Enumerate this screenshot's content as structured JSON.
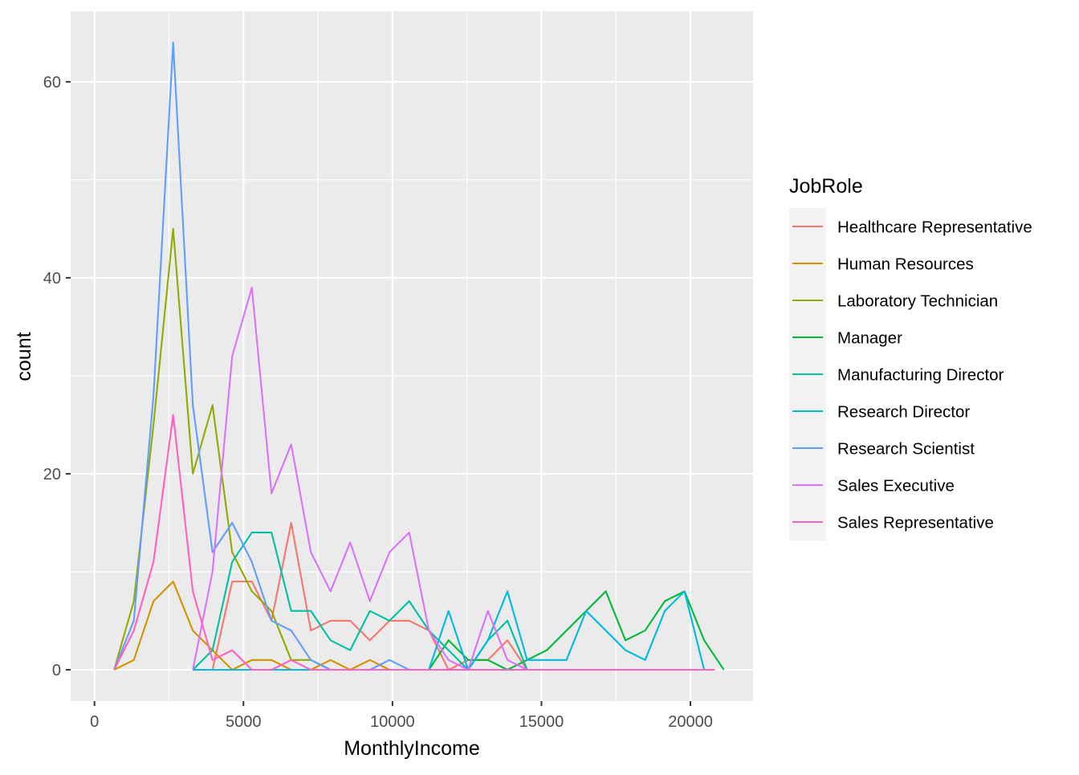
{
  "chart_data": {
    "type": "line",
    "xlabel": "MonthlyIncome",
    "ylabel": "count",
    "xlim": [
      -800,
      22100
    ],
    "ylim": [
      -3.2,
      67.2
    ],
    "x_ticks": [
      0,
      5000,
      10000,
      15000,
      20000
    ],
    "x_tick_labels": [
      "0",
      "5000",
      "10000",
      "15000",
      "20000"
    ],
    "y_ticks": [
      0,
      20,
      40,
      60
    ],
    "y_tick_labels": [
      "0",
      "20",
      "40",
      "60"
    ],
    "grid": true,
    "legend": {
      "title": "JobRole",
      "position": "right"
    },
    "series": [
      {
        "name": "Healthcare Representative",
        "color": "#F8766D",
        "points": [
          [
            3300,
            0
          ],
          [
            3960,
            0
          ],
          [
            4620,
            9
          ],
          [
            5280,
            9
          ],
          [
            5940,
            5
          ],
          [
            6600,
            15
          ],
          [
            7260,
            4
          ],
          [
            7920,
            5
          ],
          [
            8580,
            5
          ],
          [
            9240,
            3
          ],
          [
            9900,
            5
          ],
          [
            10560,
            5
          ],
          [
            11220,
            4
          ],
          [
            11880,
            0
          ],
          [
            12540,
            1
          ],
          [
            13200,
            1
          ],
          [
            13860,
            3
          ],
          [
            14520,
            0
          ],
          [
            15180,
            0
          ],
          [
            20820,
            0
          ]
        ]
      },
      {
        "name": "Human Resources",
        "color": "#D39200",
        "points": [
          [
            660,
            0
          ],
          [
            1320,
            1
          ],
          [
            1980,
            7
          ],
          [
            2640,
            9
          ],
          [
            3300,
            4
          ],
          [
            3960,
            2
          ],
          [
            4620,
            0
          ],
          [
            5280,
            1
          ],
          [
            5940,
            1
          ],
          [
            6600,
            0
          ],
          [
            7260,
            0
          ],
          [
            7920,
            1
          ],
          [
            8580,
            0
          ],
          [
            9240,
            1
          ],
          [
            9900,
            0
          ],
          [
            10560,
            0
          ],
          [
            20820,
            0
          ]
        ]
      },
      {
        "name": "Laboratory Technician",
        "color": "#93AA00",
        "points": [
          [
            660,
            0
          ],
          [
            1320,
            7
          ],
          [
            1980,
            25
          ],
          [
            2640,
            45
          ],
          [
            3300,
            20
          ],
          [
            3960,
            27
          ],
          [
            4620,
            12
          ],
          [
            5280,
            8
          ],
          [
            5940,
            6
          ],
          [
            6600,
            1
          ],
          [
            7260,
            1
          ],
          [
            7920,
            0
          ],
          [
            20820,
            0
          ]
        ]
      },
      {
        "name": "Manager",
        "color": "#00BA38",
        "points": [
          [
            11220,
            0
          ],
          [
            11880,
            3
          ],
          [
            12540,
            1
          ],
          [
            13200,
            1
          ],
          [
            13860,
            0
          ],
          [
            14520,
            1
          ],
          [
            15180,
            2
          ],
          [
            15840,
            4
          ],
          [
            16500,
            6
          ],
          [
            17160,
            8
          ],
          [
            17820,
            3
          ],
          [
            18480,
            4
          ],
          [
            19140,
            7
          ],
          [
            19800,
            8
          ],
          [
            20460,
            3
          ],
          [
            21120,
            0
          ]
        ]
      },
      {
        "name": "Manufacturing Director",
        "color": "#00C19F",
        "points": [
          [
            3300,
            0
          ],
          [
            3960,
            2
          ],
          [
            4620,
            11
          ],
          [
            5280,
            14
          ],
          [
            5940,
            14
          ],
          [
            6600,
            6
          ],
          [
            7260,
            6
          ],
          [
            7920,
            3
          ],
          [
            8580,
            2
          ],
          [
            9240,
            6
          ],
          [
            9900,
            5
          ],
          [
            10560,
            7
          ],
          [
            11220,
            4
          ],
          [
            11880,
            2
          ],
          [
            12540,
            0
          ],
          [
            13200,
            3
          ],
          [
            13860,
            5
          ],
          [
            14520,
            0
          ],
          [
            20820,
            0
          ]
        ]
      },
      {
        "name": "Research Director",
        "color": "#00B9E3",
        "points": [
          [
            3300,
            0
          ],
          [
            11220,
            0
          ],
          [
            11880,
            6
          ],
          [
            12540,
            0
          ],
          [
            13200,
            3
          ],
          [
            13860,
            8
          ],
          [
            14520,
            1
          ],
          [
            15180,
            1
          ],
          [
            15840,
            1
          ],
          [
            16500,
            6
          ],
          [
            17160,
            4
          ],
          [
            17820,
            2
          ],
          [
            18480,
            1
          ],
          [
            19140,
            6
          ],
          [
            19800,
            8
          ],
          [
            20460,
            0
          ]
        ]
      },
      {
        "name": "Research Scientist",
        "color": "#619CFF",
        "points": [
          [
            660,
            0
          ],
          [
            1320,
            5
          ],
          [
            1980,
            28
          ],
          [
            2640,
            64
          ],
          [
            3300,
            27
          ],
          [
            3960,
            12
          ],
          [
            4620,
            15
          ],
          [
            5280,
            11
          ],
          [
            5940,
            5
          ],
          [
            6600,
            4
          ],
          [
            7260,
            1
          ],
          [
            7920,
            0
          ],
          [
            9240,
            0
          ],
          [
            9900,
            1
          ],
          [
            10560,
            0
          ],
          [
            20820,
            0
          ]
        ]
      },
      {
        "name": "Sales Executive",
        "color": "#DB72FB",
        "points": [
          [
            3300,
            0
          ],
          [
            3960,
            10
          ],
          [
            4620,
            32
          ],
          [
            5280,
            39
          ],
          [
            5940,
            18
          ],
          [
            6600,
            23
          ],
          [
            7260,
            12
          ],
          [
            7920,
            8
          ],
          [
            8580,
            13
          ],
          [
            9240,
            7
          ],
          [
            9900,
            12
          ],
          [
            10560,
            14
          ],
          [
            11220,
            4
          ],
          [
            11880,
            1
          ],
          [
            12540,
            0
          ],
          [
            13200,
            6
          ],
          [
            13860,
            1
          ],
          [
            14520,
            0
          ],
          [
            20820,
            0
          ]
        ]
      },
      {
        "name": "Sales Representative",
        "color": "#FF61C3",
        "points": [
          [
            660,
            0
          ],
          [
            1320,
            4
          ],
          [
            1980,
            11
          ],
          [
            2640,
            26
          ],
          [
            3300,
            8
          ],
          [
            3960,
            1
          ],
          [
            4620,
            2
          ],
          [
            5280,
            0
          ],
          [
            5940,
            0
          ],
          [
            6600,
            1
          ],
          [
            7260,
            0
          ],
          [
            20820,
            0
          ]
        ]
      }
    ]
  }
}
